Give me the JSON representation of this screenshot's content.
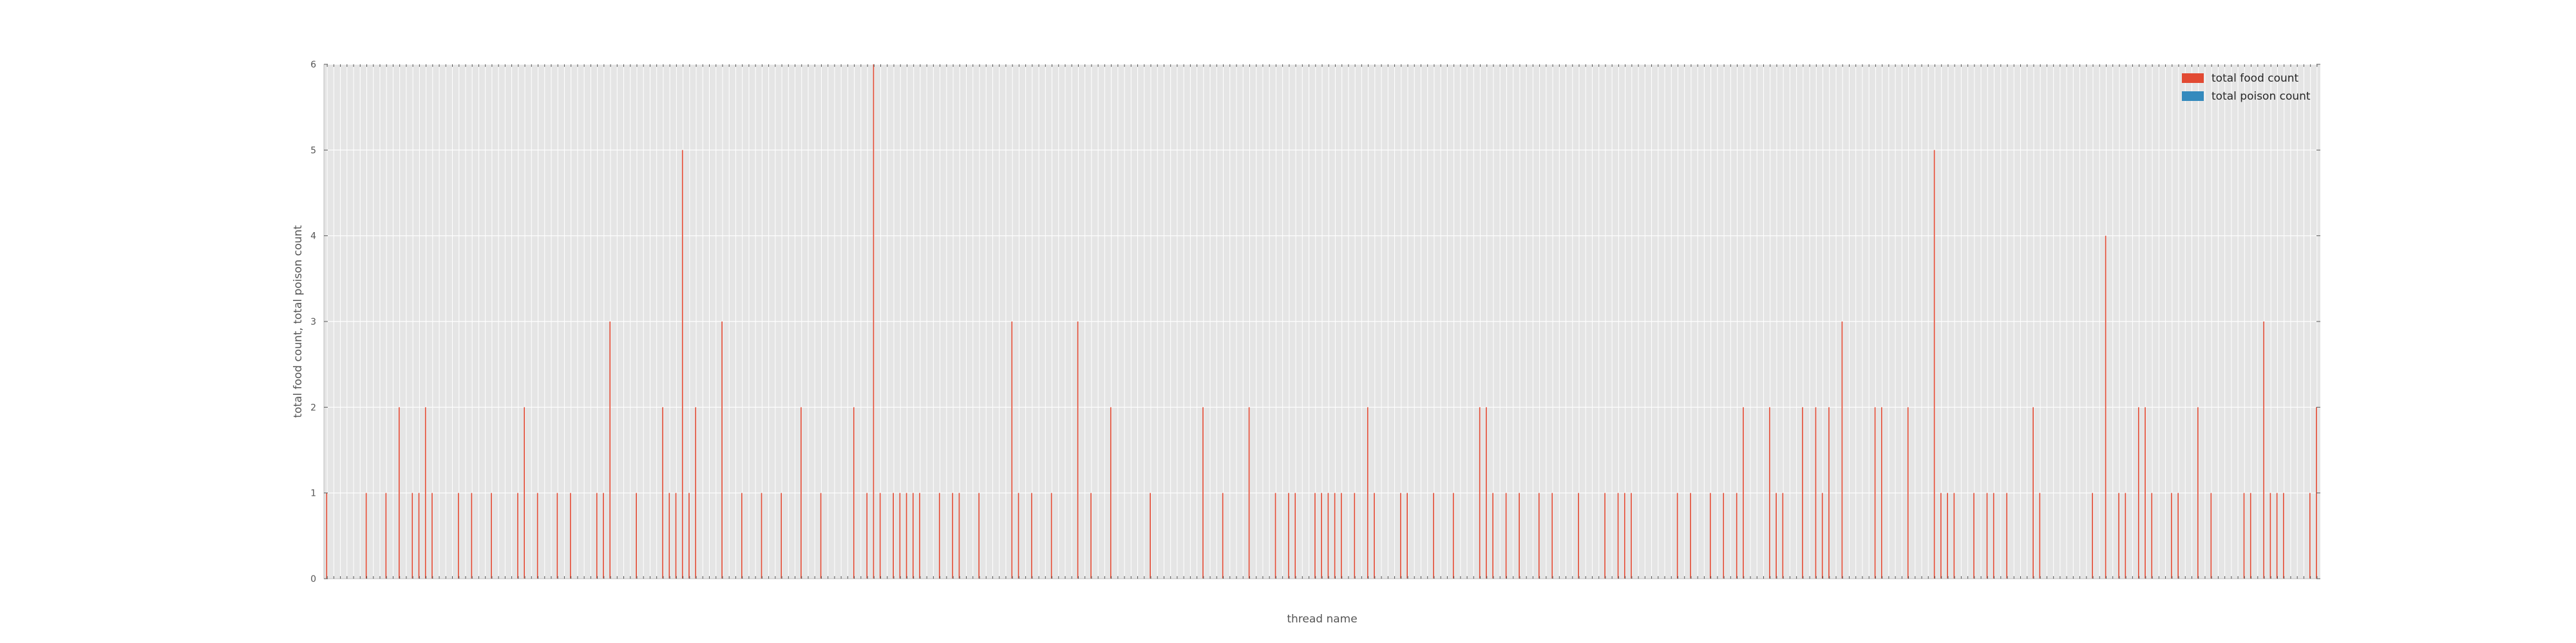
{
  "chart_data": {
    "type": "bar",
    "xlabel": "thread name",
    "ylabel": "total food count, total poison count",
    "ylim": [
      0,
      6
    ],
    "yticks": [
      "0",
      "1",
      "2",
      "3",
      "4",
      "5",
      "6"
    ],
    "grid": true,
    "legend_position": "top-right",
    "colors": {
      "background": "#e5e5e5",
      "grid": "#ffffff",
      "food": "#e24a33",
      "poison": "#348abd",
      "text": "#555555"
    },
    "series": [
      {
        "name": "total food count",
        "values": [
          1,
          0,
          0,
          0,
          0,
          0,
          1,
          0,
          0,
          1,
          0,
          2,
          0,
          1,
          1,
          2,
          1,
          0,
          0,
          0,
          1,
          0,
          1,
          0,
          0,
          1,
          0,
          0,
          0,
          1,
          2,
          0,
          1,
          0,
          0,
          1,
          0,
          1,
          0,
          0,
          0,
          1,
          1,
          3,
          0,
          0,
          0,
          1,
          0,
          0,
          0,
          2,
          1,
          1,
          5,
          1,
          2,
          0,
          0,
          0,
          3,
          0,
          0,
          1,
          0,
          0,
          1,
          0,
          0,
          1,
          0,
          0,
          2,
          0,
          0,
          1,
          0,
          0,
          0,
          0,
          2,
          0,
          1,
          6,
          1,
          0,
          1,
          1,
          1,
          1,
          1,
          0,
          0,
          1,
          0,
          1,
          1,
          0,
          0,
          1,
          0,
          0,
          0,
          0,
          3,
          1,
          0,
          1,
          0,
          0,
          1,
          0,
          0,
          0,
          3,
          0,
          1,
          0,
          0,
          2,
          0,
          0,
          0,
          0,
          0,
          1,
          0,
          0,
          0,
          0,
          0,
          0,
          0,
          2,
          0,
          0,
          1,
          0,
          0,
          0,
          2,
          0,
          0,
          0,
          1,
          0,
          1,
          1,
          0,
          0,
          1,
          1,
          1,
          1,
          1,
          0,
          1,
          0,
          2,
          1,
          0,
          0,
          0,
          1,
          1,
          0,
          0,
          0,
          1,
          0,
          0,
          1,
          0,
          0,
          0,
          2,
          2,
          1,
          0,
          1,
          0,
          1,
          0,
          0,
          1,
          0,
          1,
          0,
          0,
          0,
          1,
          0,
          0,
          0,
          1,
          0,
          1,
          1,
          1,
          0,
          0,
          0,
          0,
          0,
          0,
          1,
          0,
          1,
          0,
          0,
          1,
          0,
          1,
          0,
          1,
          2,
          0,
          0,
          0,
          2,
          1,
          1,
          0,
          0,
          2,
          0,
          2,
          1,
          2,
          0,
          3,
          0,
          0,
          0,
          0,
          2,
          2,
          0,
          0,
          0,
          2,
          0,
          0,
          0,
          5,
          1,
          1,
          1,
          0,
          0,
          1,
          0,
          1,
          1,
          0,
          1,
          0,
          0,
          0,
          2,
          1,
          0,
          0,
          0,
          0,
          0,
          0,
          0,
          1,
          0,
          4,
          0,
          1,
          1,
          0,
          2,
          2,
          1,
          0,
          0,
          1,
          1,
          0,
          0,
          2,
          0,
          1,
          0,
          0,
          0,
          0,
          1,
          1,
          0,
          3,
          1,
          1,
          1,
          0,
          0,
          0,
          1,
          2
        ],
        "note_colors": "food"
      },
      {
        "name": "total poison count",
        "values": [
          0,
          0,
          0,
          0,
          0,
          0,
          0,
          0,
          0,
          0,
          0,
          0,
          0,
          0,
          0,
          0,
          0,
          0,
          0,
          0,
          0,
          0,
          0,
          0,
          0,
          0,
          0,
          0,
          0,
          0,
          0,
          0,
          0,
          0,
          0,
          0,
          0,
          0,
          0,
          0,
          0,
          0,
          0,
          0,
          0,
          0,
          0,
          0,
          0,
          0,
          0,
          0,
          0,
          0,
          0,
          0,
          0,
          0,
          0,
          0,
          0,
          0,
          0,
          0,
          0,
          0,
          0,
          0,
          0,
          0,
          0,
          0,
          0,
          0,
          0,
          0,
          0,
          0,
          0,
          0,
          0,
          0,
          0,
          0,
          0,
          0,
          0,
          0,
          0,
          0,
          0,
          0,
          0,
          0,
          0,
          0,
          0,
          0,
          0,
          0,
          0,
          0,
          0,
          0,
          0,
          0,
          0,
          0,
          0,
          0,
          0,
          0,
          0,
          0,
          0,
          0,
          0,
          0,
          0,
          0,
          0,
          0,
          0,
          0,
          0,
          0,
          0,
          0,
          0,
          0,
          0,
          0,
          0,
          0,
          0,
          0,
          0,
          0,
          0,
          0,
          0,
          0,
          0,
          0,
          0,
          0,
          0,
          0,
          0,
          0,
          0,
          0,
          0,
          0,
          0,
          0,
          0,
          0,
          0,
          0,
          0,
          0,
          0,
          0,
          0,
          0,
          0,
          0,
          0,
          0,
          0,
          0,
          0,
          0,
          0,
          0,
          0,
          0,
          0,
          0,
          0,
          0,
          0,
          0,
          0,
          0,
          0,
          0,
          0,
          0,
          0,
          0,
          0,
          0,
          0,
          0,
          0,
          0,
          0,
          0,
          0,
          0,
          0,
          0,
          0,
          0,
          0,
          0,
          0,
          0,
          0,
          0,
          0,
          0,
          0,
          0,
          0,
          0,
          0,
          0,
          0,
          0,
          0,
          0,
          0,
          0,
          0,
          0,
          0,
          0,
          0,
          0,
          0,
          0,
          0,
          0,
          0,
          0,
          0,
          0,
          0,
          0,
          0,
          0,
          0,
          0,
          0,
          0,
          0,
          0,
          0,
          0,
          0,
          0,
          0,
          0,
          0,
          0,
          0,
          0,
          0,
          0,
          0,
          0,
          0,
          0,
          0,
          0,
          0,
          0,
          0,
          0,
          0,
          0,
          0,
          0,
          0,
          0,
          0,
          0,
          0,
          0,
          0,
          0,
          0,
          0,
          0,
          0,
          0,
          0,
          0,
          0,
          0,
          0,
          0,
          0,
          0,
          0,
          0,
          0,
          0,
          0,
          0,
          0
        ],
        "note_colors": "poison"
      }
    ]
  }
}
